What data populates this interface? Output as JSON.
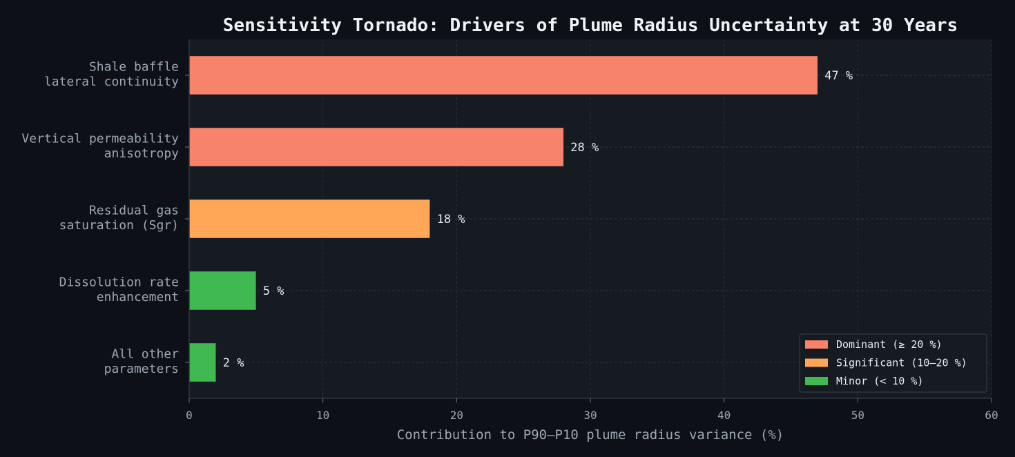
{
  "chart_data": {
    "type": "bar",
    "orientation": "horizontal",
    "title": "Sensitivity Tornado: Drivers of Plume Radius Uncertainty at 30 Years",
    "xlabel": "Contribution to P90–P10 plume radius variance (%)",
    "ylabel": "",
    "xlim": [
      0,
      60
    ],
    "xticks": [
      0,
      10,
      20,
      30,
      40,
      50,
      60
    ],
    "grid": true,
    "legend_position": "bottom-right",
    "categories": [
      [
        "Shale baffle",
        "lateral continuity"
      ],
      [
        "Vertical permeability",
        "anisotropy"
      ],
      [
        "Residual gas",
        "saturation (Sgr)"
      ],
      [
        "Dissolution rate",
        "enhancement"
      ],
      [
        "All other",
        "parameters"
      ]
    ],
    "values": [
      47,
      28,
      18,
      5,
      2
    ],
    "value_labels": [
      "47 %",
      "28 %",
      "18 %",
      "5 %",
      "2 %"
    ],
    "bar_class": [
      "dominant",
      "dominant",
      "significant",
      "minor",
      "minor"
    ],
    "legend": [
      {
        "key": "dominant",
        "label": "Dominant (≥ 20 %)",
        "color": "#f7836a"
      },
      {
        "key": "significant",
        "label": "Significant (10–20 %)",
        "color": "#ffa657"
      },
      {
        "key": "minor",
        "label": "Minor (< 10 %)",
        "color": "#3fb950"
      }
    ]
  },
  "colors": {
    "background": "#0d1117",
    "plot_background": "#161b22",
    "axis": "#30363d",
    "grid": "#2a2f37",
    "text": "#e6edf3",
    "muted_text": "#9ea7b3"
  }
}
